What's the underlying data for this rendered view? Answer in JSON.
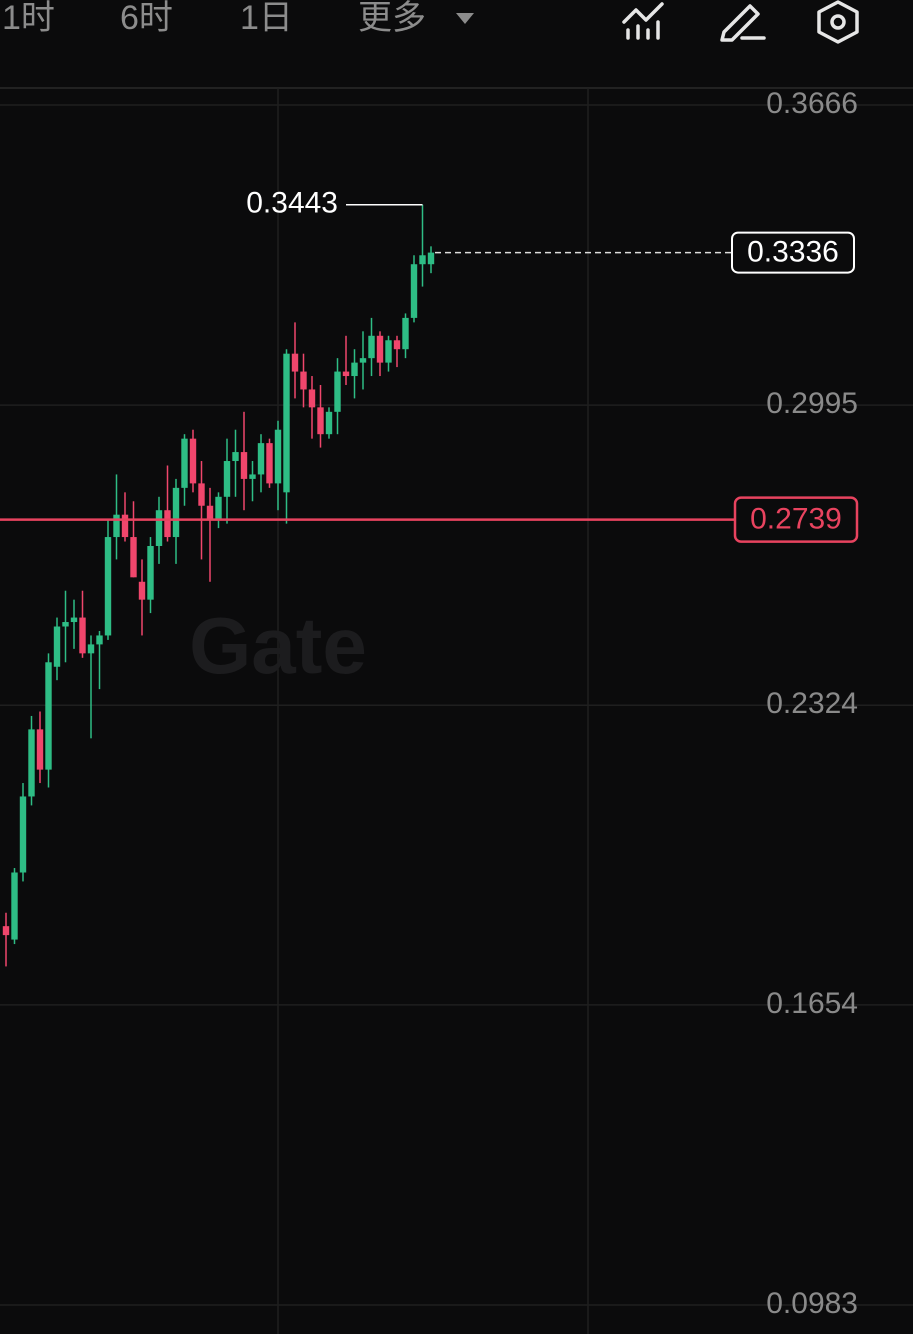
{
  "tabs": [
    "1时",
    "6时",
    "1日",
    "更多"
  ],
  "watermark": "Gate",
  "chart_data": {
    "type": "candlestick",
    "open": [
      0.183,
      0.18,
      0.195,
      0.212,
      0.227,
      0.218,
      0.241,
      0.25,
      0.251,
      0.252,
      0.244,
      0.246,
      0.248,
      0.27,
      0.275,
      0.27,
      0.26,
      0.256,
      0.268,
      0.276,
      0.27,
      0.281,
      0.292,
      0.282,
      0.277,
      0.274,
      0.279,
      0.287,
      0.289,
      0.283,
      0.284,
      0.291,
      0.282,
      0.28,
      0.311,
      0.307,
      0.303,
      0.299,
      0.293,
      0.298,
      0.307,
      0.306,
      0.309,
      0.31,
      0.315,
      0.309,
      0.314,
      0.312,
      0.319,
      0.331,
      0.331
    ],
    "high": [
      0.186,
      0.196,
      0.215,
      0.23,
      0.231,
      0.244,
      0.252,
      0.258,
      0.256,
      0.258,
      0.248,
      0.249,
      0.274,
      0.284,
      0.28,
      0.278,
      0.265,
      0.27,
      0.279,
      0.286,
      0.283,
      0.293,
      0.294,
      0.287,
      0.281,
      0.28,
      0.292,
      0.294,
      0.298,
      0.287,
      0.293,
      0.292,
      0.296,
      0.312,
      0.318,
      0.311,
      0.306,
      0.304,
      0.299,
      0.31,
      0.315,
      0.312,
      0.316,
      0.319,
      0.316,
      0.315,
      0.315,
      0.32,
      0.333,
      0.3443,
      0.335
    ],
    "low": [
      0.174,
      0.179,
      0.193,
      0.21,
      0.215,
      0.214,
      0.238,
      0.242,
      0.245,
      0.243,
      0.225,
      0.236,
      0.247,
      0.265,
      0.269,
      0.261,
      0.248,
      0.253,
      0.264,
      0.269,
      0.264,
      0.277,
      0.28,
      0.265,
      0.26,
      0.272,
      0.273,
      0.279,
      0.276,
      0.278,
      0.28,
      0.281,
      0.276,
      0.273,
      0.301,
      0.299,
      0.292,
      0.29,
      0.292,
      0.293,
      0.304,
      0.301,
      0.303,
      0.306,
      0.306,
      0.307,
      0.308,
      0.31,
      0.318,
      0.326,
      0.329
    ],
    "close": [
      0.181,
      0.195,
      0.212,
      0.227,
      0.218,
      0.242,
      0.25,
      0.251,
      0.252,
      0.244,
      0.246,
      0.248,
      0.27,
      0.275,
      0.27,
      0.261,
      0.256,
      0.268,
      0.276,
      0.27,
      0.281,
      0.292,
      0.282,
      0.277,
      0.274,
      0.279,
      0.287,
      0.289,
      0.283,
      0.284,
      0.291,
      0.282,
      0.294,
      0.311,
      0.307,
      0.303,
      0.299,
      0.293,
      0.298,
      0.307,
      0.306,
      0.309,
      0.31,
      0.315,
      0.309,
      0.314,
      0.312,
      0.319,
      0.331,
      0.333,
      0.3336
    ],
    "up_color": "#2ebd85",
    "down_color": "#f0466c",
    "ylim": [
      0.0983,
      0.3666
    ],
    "yticks": [
      0.0983,
      0.1654,
      0.2324,
      0.2995,
      0.3666
    ],
    "grid": true,
    "reference_line": {
      "value": 0.2739,
      "color": "#e8435f"
    }
  }
}
